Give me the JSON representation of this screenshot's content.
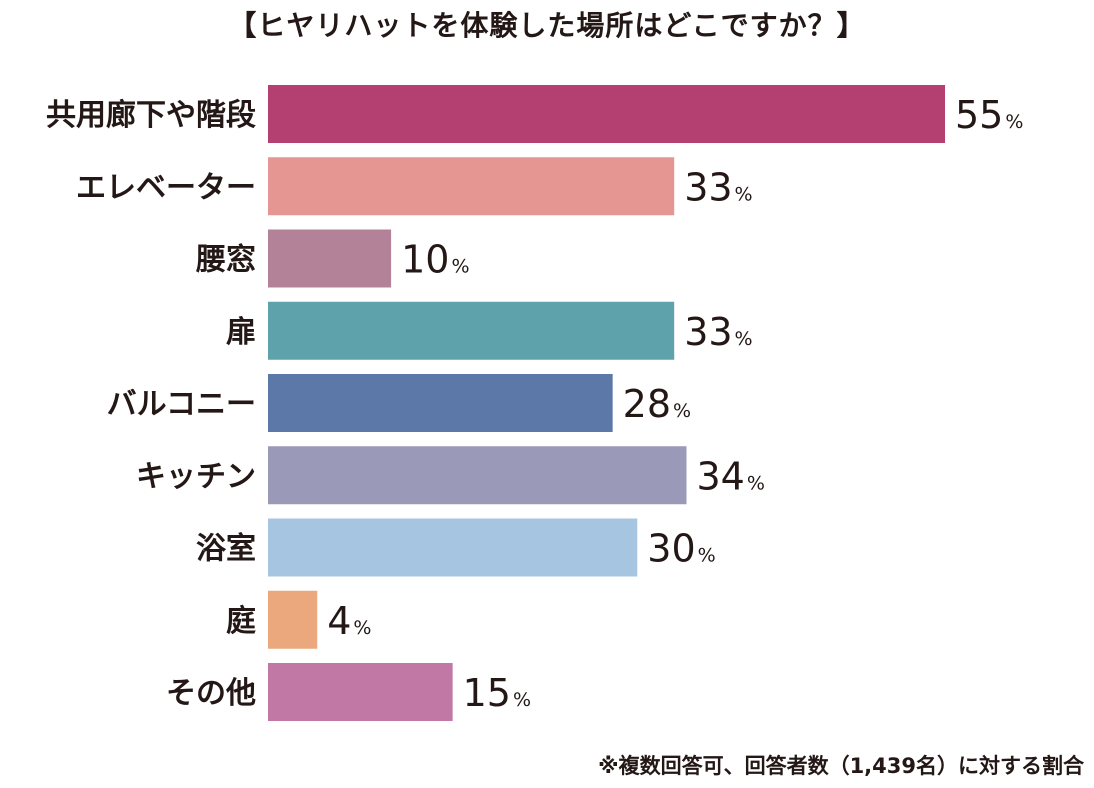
{
  "chart_data": {
    "type": "bar",
    "orientation": "horizontal",
    "title": "【ヒヤリハットを体験した場所はどこですか？】",
    "categories": [
      "共用廊下や階段",
      "エレベーター",
      "腰窓",
      "扉",
      "バルコニー",
      "キッチン",
      "浴室",
      "庭",
      "その他"
    ],
    "values": [
      55,
      33,
      10,
      33,
      28,
      34,
      30,
      4,
      15
    ],
    "unit": "%",
    "colors": [
      "#b44072",
      "#e59693",
      "#b38198",
      "#5ea2ac",
      "#5b78a9",
      "#9b99b8",
      "#a6c5e0",
      "#eaa87c",
      "#c178a5"
    ],
    "xlim": [
      0,
      55
    ],
    "grid": false,
    "legend": "none",
    "footnote": "※複数回答可、回答者数（1,439名）に対する割合"
  }
}
